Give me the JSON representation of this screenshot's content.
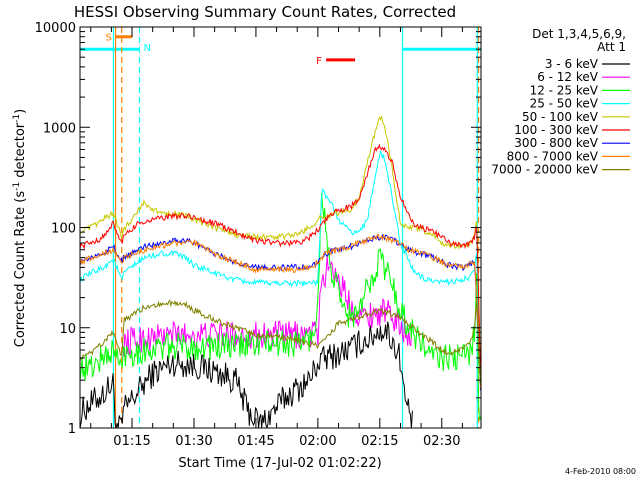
{
  "chart_data": {
    "type": "line",
    "title": "HESSI Observing Summary Count Rates, Corrected",
    "xlabel": "Start Time (17-Jul-02 01:02:22)",
    "ylabel": "Corrected Count Rate (s⁻¹ detector⁻¹)",
    "ylabel_parts": {
      "main": "Corrected Count Rate (s",
      "sup1": "-1",
      "mid": " detector",
      "sup2": "-1",
      "end": ")"
    },
    "yscale": "log",
    "ylim": [
      1,
      10000
    ],
    "xlim_minutes": [
      62.4,
      159.5
    ],
    "xticks": [
      {
        "t": 75,
        "label": "01:15"
      },
      {
        "t": 90,
        "label": "01:30"
      },
      {
        "t": 105,
        "label": "01:45"
      },
      {
        "t": 120,
        "label": "02:00"
      },
      {
        "t": 135,
        "label": "02:15"
      },
      {
        "t": 150,
        "label": "02:30"
      }
    ],
    "yticks": [
      {
        "v": 1,
        "label": "1"
      },
      {
        "v": 10,
        "label": "10"
      },
      {
        "v": 100,
        "label": "100"
      },
      {
        "v": 1000,
        "label": "1000"
      },
      {
        "v": 10000,
        "label": "10000"
      }
    ],
    "legend_title": [
      "Det 1,3,4,5,6,9,",
      "Att 1"
    ],
    "legend_position": "right",
    "footer_date": "4-Feb-2010 08:00",
    "series": [
      {
        "name": "3 - 6 keV",
        "color": "#000000",
        "x": [
          62.4,
          63,
          68,
          70.5,
          71,
          72.5,
          73,
          78,
          80,
          85,
          90,
          95,
          100,
          103,
          106,
          108,
          112,
          118,
          120,
          122,
          125,
          128,
          130,
          133,
          135,
          137,
          140,
          141,
          143
        ],
        "y": [
          1.1,
          1.5,
          2.2,
          2.8,
          1,
          1,
          1.5,
          2.8,
          3.5,
          4.5,
          4.2,
          3.7,
          3.0,
          1.5,
          1.1,
          1.3,
          2.0,
          3.0,
          4.5,
          5.0,
          5.5,
          6.2,
          7.0,
          8.0,
          9.5,
          9.0,
          5.0,
          2.0,
          1.1
        ]
      },
      {
        "name": "6 - 12 keV",
        "color": "#ff00ff",
        "x": [
          73,
          75,
          80,
          85,
          90,
          95,
          100,
          105,
          110,
          115,
          118,
          120,
          121,
          123,
          126,
          128,
          131,
          134,
          136,
          138,
          141,
          143
        ],
        "y": [
          7,
          7.5,
          8,
          8.5,
          8.5,
          8.5,
          8.5,
          8.5,
          8.5,
          8.5,
          8.5,
          9,
          30,
          45,
          25,
          16,
          13,
          14,
          14.5,
          13,
          9.5,
          8.5
        ]
      },
      {
        "name": "12 - 25 keV",
        "color": "#00ff00",
        "x": [
          62.4,
          65,
          68,
          70.5,
          72.5,
          73,
          78,
          85,
          90,
          95,
          100,
          105,
          110,
          115,
          119,
          120,
          121,
          122,
          123,
          124,
          126,
          128,
          130,
          132,
          134,
          135,
          137,
          139,
          141,
          144,
          148,
          152,
          155,
          157,
          158,
          158.5,
          159,
          159.5
        ],
        "y": [
          4,
          4,
          5,
          6,
          4,
          5.5,
          6,
          6.5,
          6.5,
          6.5,
          6.5,
          7,
          7,
          7,
          8,
          20,
          250,
          80,
          40,
          30,
          15,
          13,
          14,
          25,
          40,
          50,
          35,
          20,
          12,
          8,
          5,
          5,
          5,
          6,
          10,
          40,
          1,
          1
        ]
      },
      {
        "name": "25 - 50 keV",
        "color": "#00ffff",
        "x": [
          62.4,
          65,
          68,
          70.5,
          72.5,
          73,
          78,
          82,
          85,
          88,
          90,
          95,
          100,
          105,
          110,
          115,
          118,
          120,
          121,
          123,
          125,
          128,
          130,
          132,
          134,
          135,
          136,
          138,
          140,
          143,
          145,
          148,
          152,
          155,
          157,
          158,
          158.5,
          159.5
        ],
        "y": [
          30,
          35,
          40,
          48,
          30,
          35,
          50,
          55,
          55,
          50,
          42,
          35,
          30,
          28,
          28,
          28,
          28,
          28,
          240,
          180,
          120,
          90,
          90,
          120,
          350,
          550,
          500,
          200,
          70,
          38,
          32,
          28,
          29,
          30,
          32,
          40,
          55,
          2
        ]
      },
      {
        "name": "50 - 100 keV",
        "color": "#c8c800",
        "x": [
          62.4,
          65,
          68,
          70.5,
          72.5,
          73,
          76,
          78,
          80,
          82,
          85,
          88,
          90,
          95,
          100,
          105,
          110,
          115,
          118,
          120,
          122,
          125,
          128,
          130,
          132,
          134,
          135,
          136,
          138,
          139,
          140,
          142,
          145,
          148,
          150,
          152,
          155,
          157,
          158,
          158.5,
          159.5
        ],
        "y": [
          90,
          100,
          120,
          140,
          80,
          95,
          140,
          180,
          150,
          140,
          140,
          130,
          120,
          100,
          85,
          80,
          80,
          85,
          100,
          120,
          130,
          140,
          150,
          200,
          450,
          950,
          1300,
          1100,
          400,
          200,
          110,
          100,
          95,
          85,
          70,
          65,
          65,
          70,
          90,
          130,
          2
        ]
      },
      {
        "name": "100 - 300 keV",
        "color": "#ff0000",
        "x": [
          62.4,
          65,
          68,
          70.5,
          72.5,
          73,
          76,
          78,
          80,
          85,
          88,
          90,
          95,
          100,
          105,
          110,
          115,
          118,
          120,
          122,
          125,
          128,
          130,
          132,
          134,
          135,
          136,
          138,
          140,
          143,
          145,
          148,
          150,
          152,
          155,
          157,
          158,
          158.5,
          159.5
        ],
        "y": [
          65,
          70,
          80,
          110,
          70,
          80,
          105,
          115,
          120,
          130,
          130,
          125,
          110,
          90,
          75,
          70,
          70,
          80,
          95,
          120,
          150,
          160,
          200,
          350,
          600,
          650,
          600,
          450,
          200,
          110,
          100,
          90,
          80,
          70,
          65,
          70,
          80,
          110,
          2
        ]
      },
      {
        "name": "300 - 800 keV",
        "color": "#0000ff",
        "x": [
          62.4,
          65,
          68,
          70.5,
          72.5,
          73,
          78,
          82,
          85,
          88,
          90,
          95,
          100,
          105,
          110,
          115,
          118,
          120,
          122,
          125,
          128,
          130,
          132,
          134,
          136,
          138,
          140,
          142,
          145,
          148,
          150,
          152,
          155,
          158,
          159.5
        ],
        "y": [
          45,
          50,
          55,
          65,
          45,
          50,
          65,
          70,
          75,
          75,
          70,
          55,
          45,
          40,
          40,
          40,
          40,
          45,
          55,
          60,
          65,
          70,
          75,
          80,
          80,
          75,
          70,
          60,
          55,
          50,
          45,
          42,
          40,
          45,
          2
        ]
      },
      {
        "name": "800 - 7000 keV",
        "color": "#ff8000",
        "x": [
          62.4,
          65,
          68,
          70.5,
          72.5,
          73,
          78,
          82,
          85,
          90,
          95,
          100,
          105,
          110,
          115,
          118,
          120,
          122,
          125,
          128,
          130,
          132,
          134,
          136,
          138,
          140,
          142,
          145,
          148,
          150,
          152,
          155,
          158,
          159.5
        ],
        "y": [
          45,
          50,
          55,
          60,
          45,
          50,
          60,
          65,
          70,
          70,
          55,
          45,
          38,
          38,
          38,
          40,
          45,
          55,
          60,
          65,
          70,
          75,
          80,
          80,
          75,
          70,
          60,
          55,
          50,
          45,
          42,
          40,
          45,
          2
        ]
      },
      {
        "name": "7000 - 20000 keV",
        "color": "#808000",
        "x": [
          62.4,
          65,
          68,
          70.5,
          72.5,
          73,
          76,
          78,
          80,
          83,
          85,
          88,
          90,
          95,
          100,
          105,
          110,
          115,
          118,
          120,
          122,
          125,
          128,
          130,
          133,
          135,
          137,
          139,
          141,
          143,
          146,
          148,
          150,
          152,
          155,
          157,
          158,
          158.5,
          159.5
        ],
        "y": [
          5,
          5.5,
          7,
          9,
          5,
          12,
          14,
          16,
          17,
          17,
          18,
          17,
          15,
          12,
          10,
          8.5,
          8,
          7.5,
          7,
          6.5,
          8,
          11,
          12,
          13,
          14,
          15,
          14,
          13,
          12,
          10,
          8,
          7,
          6,
          5.5,
          6,
          7,
          10,
          22,
          2
        ]
      }
    ],
    "flags": [
      {
        "label": "S",
        "color": "#ff8000",
        "t0": 71,
        "t1": 75,
        "v": 8000
      },
      {
        "label": "N",
        "color": "#00ffff",
        "t0": 62.4,
        "t1": 76.8,
        "v": 6000
      },
      {
        "label": "F",
        "color": "#ff0000",
        "t0": 122,
        "t1": 129,
        "v": 4700
      },
      {
        "label": "",
        "color": "#00ffff",
        "t0": 140.5,
        "t1": 159.5,
        "v": 6000
      }
    ],
    "vlines": [
      {
        "t": 70.5,
        "color": "#00ffff",
        "style": "solid"
      },
      {
        "t": 71,
        "color": "#ff8000",
        "style": "solid"
      },
      {
        "t": 72.5,
        "color": "#ff8000",
        "style": "dashed"
      },
      {
        "t": 76.8,
        "color": "#00ffff",
        "style": "dashed"
      },
      {
        "t": 140.5,
        "color": "#00ffff",
        "style": "solid"
      },
      {
        "t": 158.6,
        "color": "#00ffff",
        "style": "solid"
      },
      {
        "t": 158.9,
        "color": "#ff8000",
        "style": "dashed"
      }
    ]
  }
}
